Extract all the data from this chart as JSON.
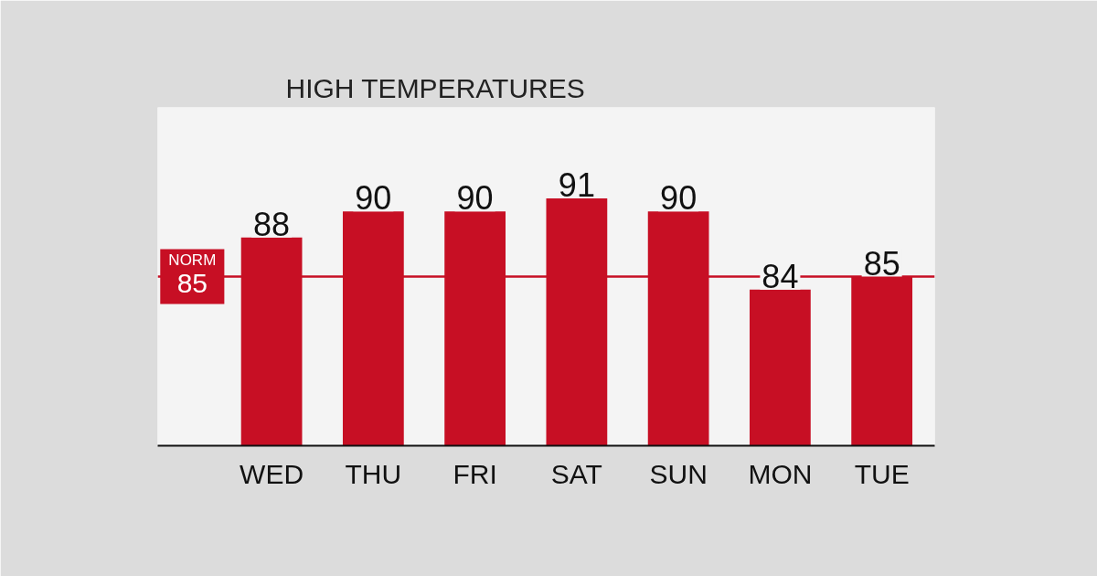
{
  "chart_data": {
    "type": "bar",
    "title": "HIGH TEMPERATURES",
    "categories": [
      "WED",
      "THU",
      "FRI",
      "SAT",
      "SUN",
      "MON",
      "TUE"
    ],
    "values": [
      88,
      90,
      90,
      91,
      90,
      84,
      85
    ],
    "color": "#c70f24",
    "ylim": [
      72,
      98
    ],
    "data_labels": true,
    "grid": false,
    "tick_labels": "x",
    "ref_lines": [
      {
        "axis": "y",
        "value": 85,
        "label": "NORM 85",
        "color": "#c70f24"
      }
    ]
  }
}
